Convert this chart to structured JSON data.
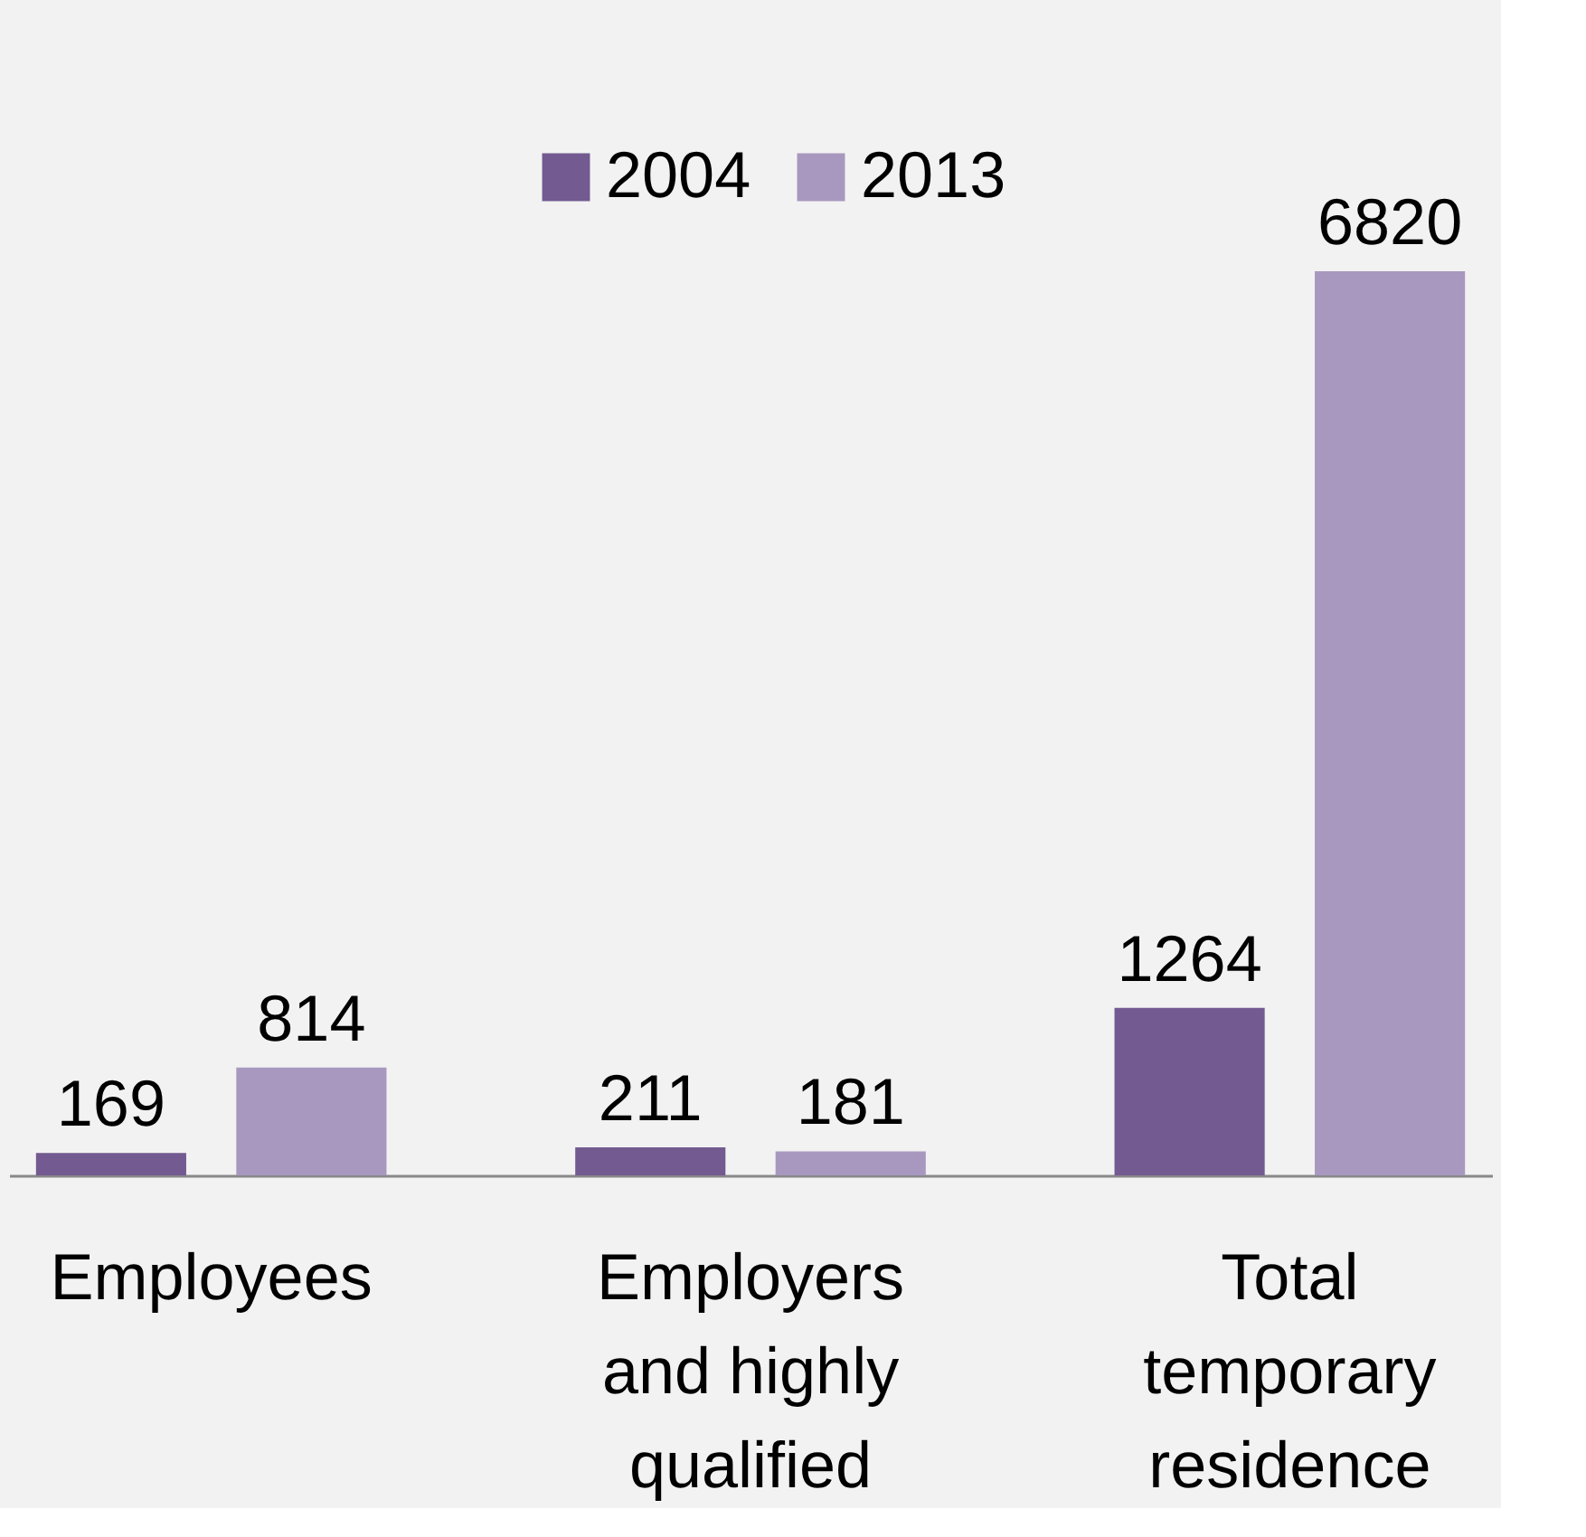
{
  "chart_data": {
    "type": "bar",
    "categories": [
      "Employees",
      "Employers and highly qualified",
      "Total temporary residence"
    ],
    "series": [
      {
        "name": "2004",
        "color": "#735a91",
        "values": [
          169,
          211,
          1264
        ]
      },
      {
        "name": "2013",
        "color": "#a898bf",
        "values": [
          814,
          181,
          6820
        ]
      }
    ],
    "data_labels": true,
    "legend": "top"
  }
}
